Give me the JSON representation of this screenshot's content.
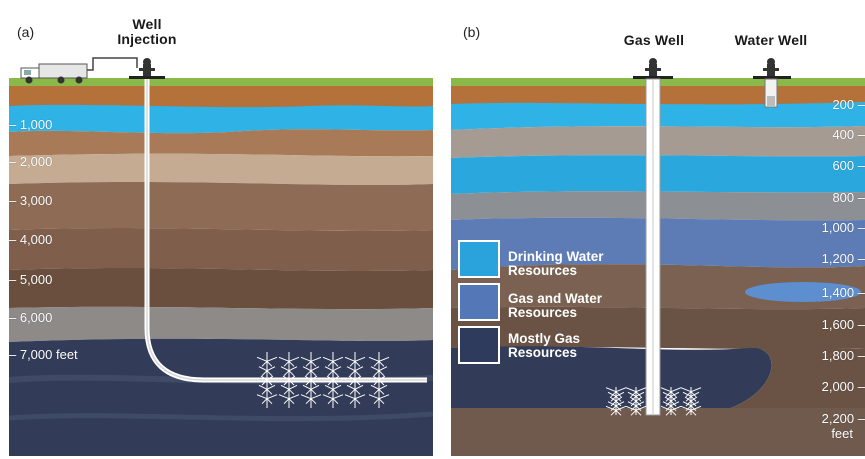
{
  "panel_a": {
    "label": "(a)",
    "well_title_line1": "Well",
    "well_title_line2": "Injection",
    "depth_labels": [
      "1,000",
      "2,000",
      "3,000",
      "4,000",
      "5,000",
      "6,000",
      "7,000 feet"
    ]
  },
  "panel_b": {
    "label": "(b)",
    "gas_well_title": "Gas Well",
    "water_well_title": "Water Well",
    "depth_labels": [
      "200",
      "400",
      "600",
      "800",
      "1,000",
      "1,200",
      "1,400",
      "1,600",
      "1,800",
      "2,000",
      "2,200",
      "feet"
    ],
    "legend": [
      {
        "line1": "Drinking Water",
        "line2": "Resources",
        "color": "#2aa3dc"
      },
      {
        "line1": "Gas and Water",
        "line2": "Resources",
        "color": "#5477b8"
      },
      {
        "line1": "Mostly Gas",
        "line2": "Resources",
        "color": "#2f3b5c"
      }
    ]
  },
  "colors": {
    "grass": "#8ab94a",
    "topsoil": "#b4713a",
    "aquifer": "#2fb2e6",
    "deep_gas": "#323c58"
  }
}
